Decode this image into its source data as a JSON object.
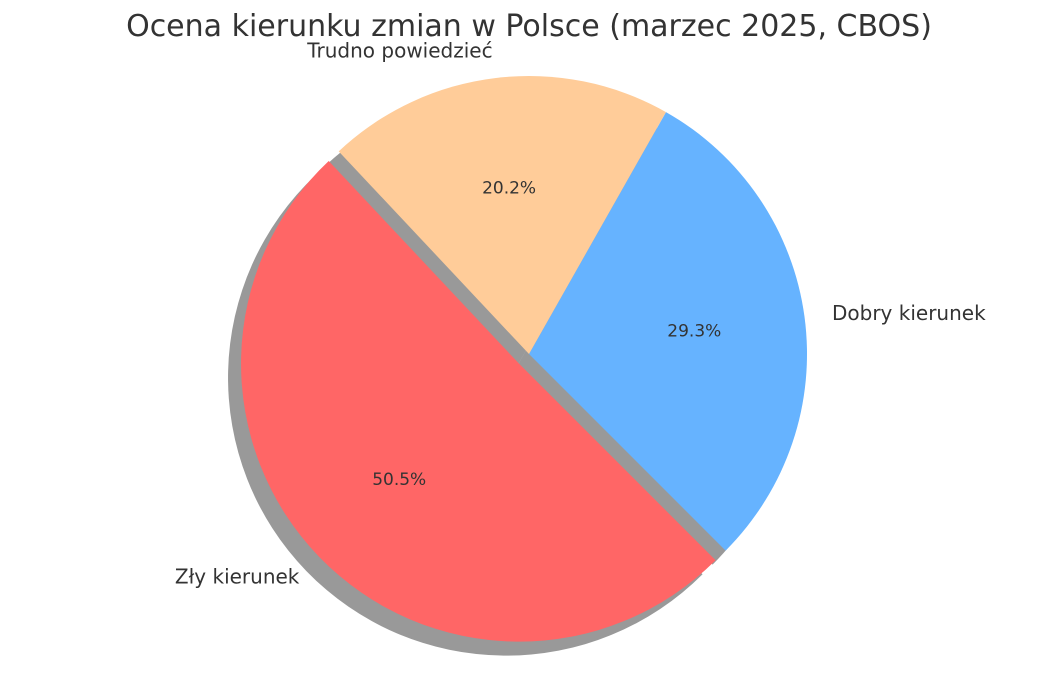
{
  "chart_data": {
    "type": "pie",
    "title": "Ocena kierunku zmian w Polsce (marzec 2025, CBOS)",
    "slices": [
      {
        "label": "Dobry kierunek",
        "value": 29.3,
        "pct_label": "29.3%",
        "color": "#66b3ff",
        "exploded": false
      },
      {
        "label": "Trudno powiedzieć",
        "value": 20.2,
        "pct_label": "20.2%",
        "color": "#ffcc99",
        "exploded": false
      },
      {
        "label": "Zły kierunek",
        "value": 50.5,
        "pct_label": "50.5%",
        "color": "#ff6666",
        "exploded": true
      }
    ],
    "start_angle_deg": -45,
    "direction": "counterclockwise",
    "shadow": true,
    "legend": "none"
  }
}
